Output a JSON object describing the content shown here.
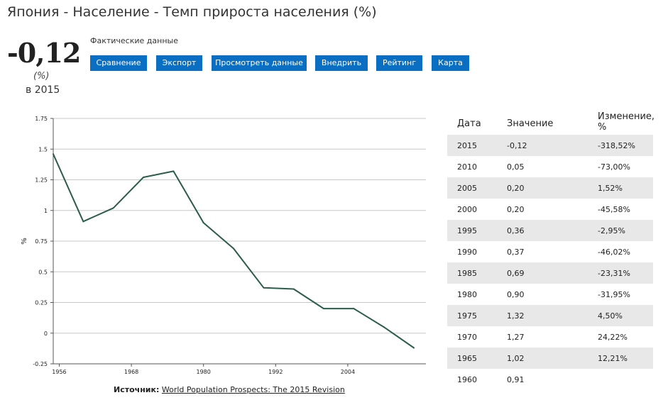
{
  "page": {
    "title": "Япония - Население - Темп прироста населения (%)",
    "current_value": "-0,12",
    "unit": "(%)",
    "year_text": "в 2015",
    "subtitle": "Фактические данные"
  },
  "buttons": [
    "Сравнение",
    "Экспорт",
    "Просмотреть данные",
    "Внедрить",
    "Рейтинг",
    "Карта"
  ],
  "source": {
    "label": "Источник:",
    "link": "World Population Prospects: The 2015 Revision"
  },
  "table": {
    "headers": [
      "Дата",
      "Значение",
      "Изменение, %"
    ],
    "rows": [
      [
        "2015",
        "-0,12",
        "-318,52%"
      ],
      [
        "2010",
        "0,05",
        "-73,00%"
      ],
      [
        "2005",
        "0,20",
        "1,52%"
      ],
      [
        "2000",
        "0,20",
        "-45,58%"
      ],
      [
        "1995",
        "0,36",
        "-2,95%"
      ],
      [
        "1990",
        "0,37",
        "-46,02%"
      ],
      [
        "1985",
        "0,69",
        "-23,31%"
      ],
      [
        "1980",
        "0,90",
        "-31,95%"
      ],
      [
        "1975",
        "1,32",
        "4,50%"
      ],
      [
        "1970",
        "1,27",
        "24,22%"
      ],
      [
        "1965",
        "1,02",
        "12,21%"
      ],
      [
        "1960",
        "0,91",
        ""
      ]
    ]
  },
  "chart_data": {
    "type": "line",
    "ylabel": "%",
    "xlabel": "",
    "ylim": [
      -0.25,
      1.75
    ],
    "xlim": [
      1955,
      2017
    ],
    "y_ticks": [
      "-0.25",
      "0",
      "0.25",
      "0.5",
      "0.75",
      "1",
      "1.25",
      "1.5",
      "1.75"
    ],
    "x_ticks": [
      "1956",
      "1968",
      "1980",
      "1992",
      "2004"
    ],
    "grid": true,
    "line_color": "#2b5d4a",
    "series": [
      {
        "x": [
          1955,
          1960,
          1965,
          1970,
          1975,
          1980,
          1985,
          1990,
          1995,
          2000,
          2005,
          2010,
          2015
        ],
        "values": [
          1.46,
          0.91,
          1.02,
          1.27,
          1.32,
          0.9,
          0.69,
          0.37,
          0.36,
          0.2,
          0.2,
          0.05,
          -0.12
        ]
      }
    ]
  }
}
